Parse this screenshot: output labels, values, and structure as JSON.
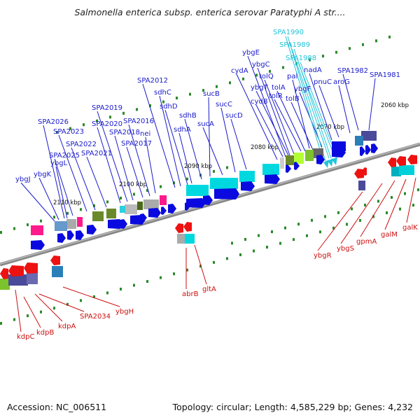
{
  "header": {
    "title": "Salmonella enterica subsp. enterica serovar Paratyphi A str...."
  },
  "footer": {
    "accession": "Accession: NC_006511",
    "topology": "Topology: circular; Length: 4,585,229 bp; Genes: 4,232"
  },
  "colors": {
    "forward_label": "#1a1acc",
    "reverse_label": "#cc1111",
    "rna_label": "#22c4d8",
    "forward_arrow": "#0a0ae0",
    "reverse_arrow": "#ee1111",
    "backbone": "#777777",
    "tick": "#2a8a2a"
  },
  "ticks": [
    {
      "label": "2060 kbp"
    },
    {
      "label": "2070 kbp"
    },
    {
      "label": "2080 kbp"
    },
    {
      "label": "2090 kbp"
    },
    {
      "label": "2100 kbp"
    },
    {
      "label": "2110 kbp"
    }
  ],
  "forward_genes": [
    "SPA1981",
    "SPA1982",
    "aroG",
    "pnuC",
    "nadA",
    "ybgF",
    "tolB",
    "pal",
    "tolR",
    "tolA",
    "tolQ",
    "ybgT",
    "cydB",
    "ybgC",
    "ybgE",
    "cydA",
    "sucD",
    "sucC",
    "sucA",
    "sucB",
    "sdhB",
    "sdhA",
    "sdhD",
    "sdhC",
    "SPA2012",
    "nei",
    "SPA2016",
    "SPA2017",
    "SPA2018",
    "SPA2019",
    "SPA2020",
    "SPA2021",
    "SPA2022",
    "SPA2023",
    "SPA2025",
    "ybgL",
    "SPA2026",
    "ybgK",
    "ybgJ"
  ],
  "rna_genes": [
    "SPA1990",
    "SPA1989",
    "SPA1988"
  ],
  "reverse_genes": [
    "galK",
    "galM",
    "gpmA",
    "ybgS",
    "ybgR",
    "gltA",
    "abrB",
    "ybgH",
    "SPA2034",
    "kdpA",
    "kdpB",
    "kdpC"
  ]
}
